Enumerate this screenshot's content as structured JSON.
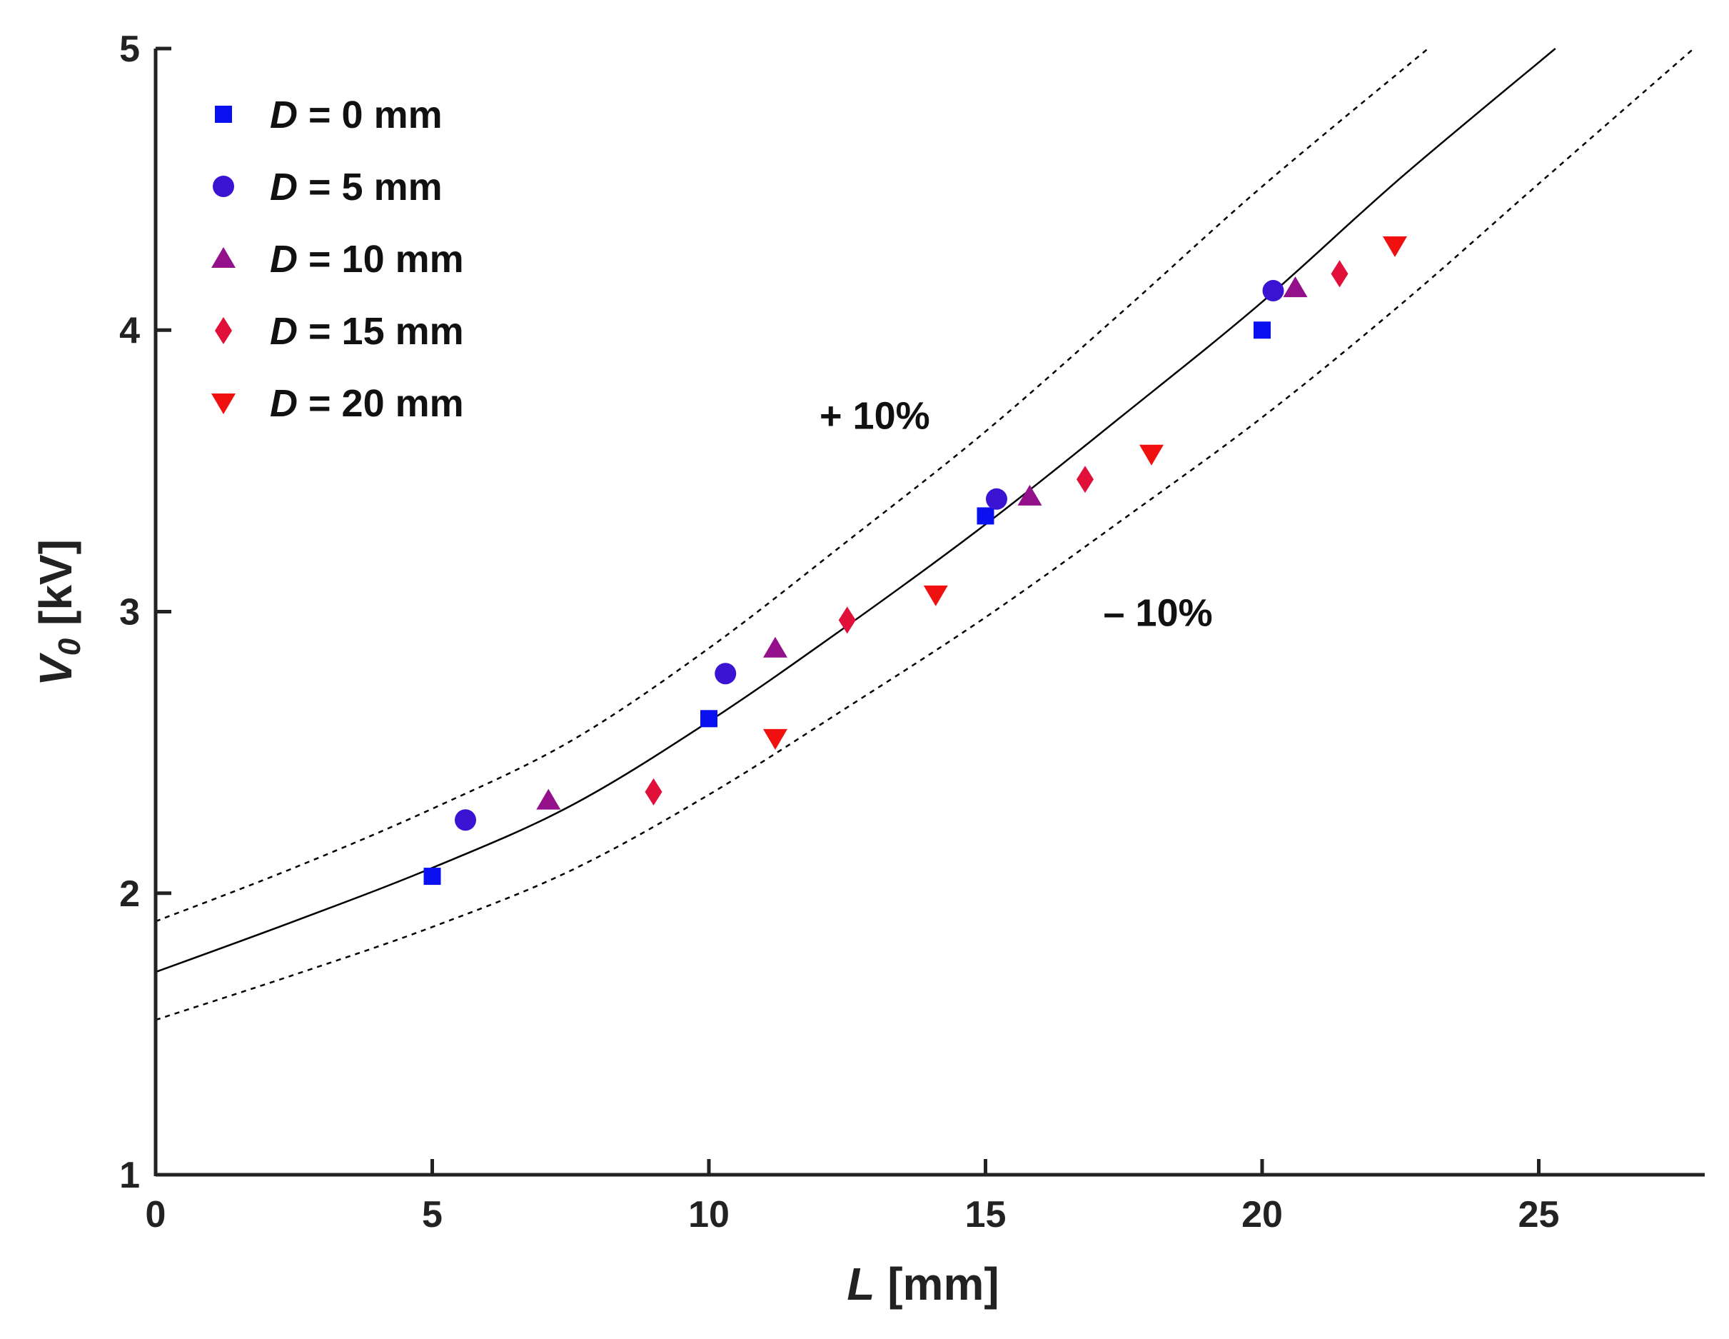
{
  "chart_data": {
    "type": "scatter",
    "xlabel_var": "L",
    "xlabel_unit": " [mm]",
    "ylabel_var": "V",
    "ylabel_sub": "0",
    "ylabel_unit": " [kV]",
    "xlim": [
      0,
      28
    ],
    "ylim": [
      1,
      5
    ],
    "xticks": [
      0,
      5,
      10,
      15,
      20,
      25
    ],
    "yticks": [
      1,
      2,
      3,
      4,
      5
    ],
    "grid": false,
    "legend_position": "top-left",
    "series": [
      {
        "name_var": "D",
        "name_rest": " = 0 mm",
        "marker": "square",
        "color": "#0a10f0",
        "points": [
          [
            5.0,
            2.06
          ],
          [
            10.0,
            2.62
          ],
          [
            15.0,
            3.34
          ],
          [
            20.0,
            4.0
          ]
        ]
      },
      {
        "name_var": "D",
        "name_rest": " = 5 mm",
        "marker": "circle",
        "color": "#3a14d2",
        "points": [
          [
            5.6,
            2.26
          ],
          [
            10.3,
            2.78
          ],
          [
            15.2,
            3.4
          ],
          [
            20.2,
            4.14
          ]
        ]
      },
      {
        "name_var": "D",
        "name_rest": " = 10 mm",
        "marker": "triangle-up",
        "color": "#93108a",
        "points": [
          [
            7.1,
            2.33
          ],
          [
            11.2,
            2.87
          ],
          [
            15.8,
            3.41
          ],
          [
            20.6,
            4.15
          ]
        ]
      },
      {
        "name_var": "D",
        "name_rest": " = 15 mm",
        "marker": "diamond",
        "color": "#e0103a",
        "points": [
          [
            9.0,
            2.36
          ],
          [
            12.5,
            2.97
          ],
          [
            16.8,
            3.47
          ],
          [
            21.4,
            4.2
          ]
        ]
      },
      {
        "name_var": "D",
        "name_rest": " = 20 mm",
        "marker": "triangle-down",
        "color": "#f01010",
        "points": [
          [
            11.2,
            2.55
          ],
          [
            14.1,
            3.06
          ],
          [
            18.0,
            3.56
          ],
          [
            22.4,
            4.3
          ]
        ]
      }
    ],
    "fit_curve": {
      "points": [
        [
          0,
          1.72
        ],
        [
          2.5,
          1.9
        ],
        [
          5,
          2.09
        ],
        [
          7.5,
          2.31
        ],
        [
          10,
          2.61
        ],
        [
          12.5,
          2.95
        ],
        [
          15,
          3.31
        ],
        [
          17.5,
          3.7
        ],
        [
          20,
          4.1
        ],
        [
          22.5,
          4.54
        ],
        [
          25.3,
          5.0
        ]
      ]
    },
    "band_upper": {
      "label": "+ 10%",
      "label_pos": [
        12.0,
        3.7
      ],
      "points": [
        [
          0,
          1.9
        ],
        [
          2.5,
          2.09
        ],
        [
          5,
          2.3
        ],
        [
          7.5,
          2.54
        ],
        [
          10,
          2.87
        ],
        [
          12.5,
          3.25
        ],
        [
          15,
          3.64
        ],
        [
          17.5,
          4.07
        ],
        [
          20,
          4.51
        ],
        [
          23.0,
          5.0
        ]
      ]
    },
    "band_lower": {
      "label": "– 10%",
      "label_pos": [
        17.0,
        3.0
      ],
      "points": [
        [
          0,
          1.55
        ],
        [
          2.5,
          1.71
        ],
        [
          5,
          1.88
        ],
        [
          7.5,
          2.08
        ],
        [
          10,
          2.35
        ],
        [
          12.5,
          2.66
        ],
        [
          15,
          2.98
        ],
        [
          17.5,
          3.33
        ],
        [
          20,
          3.69
        ],
        [
          22.5,
          4.09
        ],
        [
          25,
          4.52
        ],
        [
          27.8,
          5.0
        ]
      ]
    }
  }
}
